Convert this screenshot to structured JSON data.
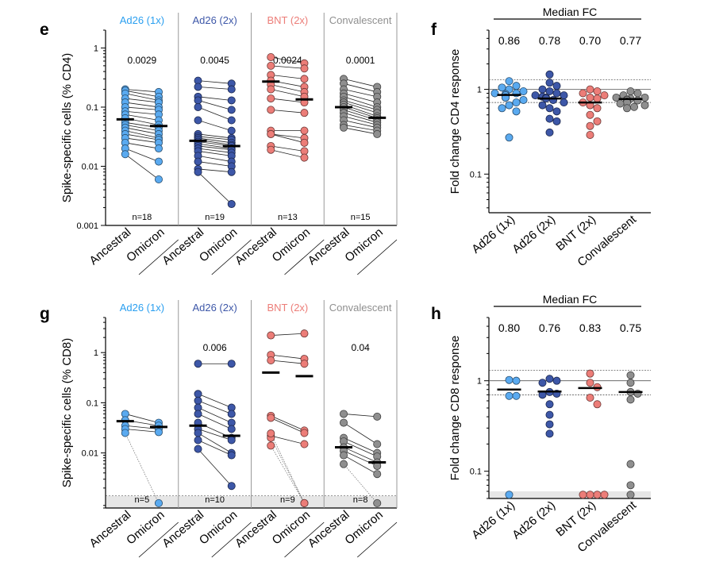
{
  "colors": {
    "Ad26 (1x)": "#5aaaf0",
    "Ad26 (2x)": "#3d57a8",
    "BNT (2x)": "#ec7d78",
    "Convalescent": "#8f8f8f",
    "group_text": [
      "#2a9ff0",
      "#3d57a8",
      "#ec7d78",
      "#8f8f8f"
    ]
  },
  "chart_data": [
    {
      "panel": "e",
      "type": "scatter",
      "ylabel": "Spike-specific cells (% CD4)",
      "yscale": "log",
      "ylim": [
        0.001,
        2
      ],
      "yticks": [
        0.001,
        0.01,
        0.1,
        1
      ],
      "ytick_labels": [
        "0.001",
        "0.01",
        "0.1",
        "1"
      ],
      "xlabels": [
        "Ancestral",
        "Omicron"
      ],
      "groups": [
        {
          "name": "Ad26 (1x)",
          "p": "0.0029",
          "n": "n=18",
          "median": [
            0.062,
            0.048
          ],
          "pairs": [
            [
              0.2,
              0.18
            ],
            [
              0.19,
              0.15
            ],
            [
              0.17,
              0.13
            ],
            [
              0.14,
              0.12
            ],
            [
              0.12,
              0.1
            ],
            [
              0.1,
              0.09
            ],
            [
              0.085,
              0.075
            ],
            [
              0.075,
              0.06
            ],
            [
              0.065,
              0.05
            ],
            [
              0.055,
              0.045
            ],
            [
              0.05,
              0.04
            ],
            [
              0.045,
              0.035
            ],
            [
              0.04,
              0.03
            ],
            [
              0.035,
              0.028
            ],
            [
              0.03,
              0.025
            ],
            [
              0.025,
              0.02
            ],
            [
              0.02,
              0.012
            ],
            [
              0.016,
              0.006
            ]
          ]
        },
        {
          "name": "Ad26 (2x)",
          "p": "0.0045",
          "n": "n=19",
          "median": [
            0.027,
            0.022
          ],
          "pairs": [
            [
              0.28,
              0.25
            ],
            [
              0.22,
              0.2
            ],
            [
              0.15,
              0.13
            ],
            [
              0.13,
              0.09
            ],
            [
              0.1,
              0.06
            ],
            [
              0.06,
              0.04
            ],
            [
              0.035,
              0.03
            ],
            [
              0.032,
              0.028
            ],
            [
              0.03,
              0.025
            ],
            [
              0.028,
              0.023
            ],
            [
              0.026,
              0.022
            ],
            [
              0.024,
              0.02
            ],
            [
              0.022,
              0.019
            ],
            [
              0.02,
              0.017
            ],
            [
              0.018,
              0.015
            ],
            [
              0.015,
              0.012
            ],
            [
              0.012,
              0.01
            ],
            [
              0.009,
              0.008
            ],
            [
              0.008,
              0.0023
            ]
          ]
        },
        {
          "name": "BNT (2x)",
          "p": "0.0024",
          "n": "n=13",
          "median": [
            0.27,
            0.135
          ],
          "pairs": [
            [
              0.7,
              0.55
            ],
            [
              0.5,
              0.45
            ],
            [
              0.35,
              0.3
            ],
            [
              0.28,
              0.22
            ],
            [
              0.24,
              0.18
            ],
            [
              0.2,
              0.15
            ],
            [
              0.14,
              0.12
            ],
            [
              0.09,
              0.08
            ],
            [
              0.04,
              0.04
            ],
            [
              0.035,
              0.03
            ],
            [
              0.035,
              0.025
            ],
            [
              0.022,
              0.018
            ],
            [
              0.019,
              0.014
            ]
          ]
        },
        {
          "name": "Convalescent",
          "p": "0.0001",
          "n": "n=15",
          "median": [
            0.1,
            0.066
          ],
          "pairs": [
            [
              0.3,
              0.22
            ],
            [
              0.25,
              0.18
            ],
            [
              0.2,
              0.15
            ],
            [
              0.17,
              0.12
            ],
            [
              0.15,
              0.1
            ],
            [
              0.13,
              0.09
            ],
            [
              0.12,
              0.08
            ],
            [
              0.11,
              0.07
            ],
            [
              0.1,
              0.065
            ],
            [
              0.09,
              0.06
            ],
            [
              0.08,
              0.055
            ],
            [
              0.07,
              0.05
            ],
            [
              0.06,
              0.045
            ],
            [
              0.05,
              0.04
            ],
            [
              0.045,
              0.035
            ]
          ]
        }
      ]
    },
    {
      "panel": "f",
      "type": "scatter",
      "ylabel": "Fold change CD4 response",
      "yscale": "log",
      "ylim": [
        0.035,
        5
      ],
      "yticks": [
        0.1,
        1
      ],
      "ytick_labels": [
        "0.1",
        "1"
      ],
      "median_fc_title": "Median FC",
      "reference_lines": [
        1.3,
        1,
        0.7
      ],
      "categories": [
        "Ad26 (1x)",
        "Ad26 (2x)",
        "BNT (2x)",
        "Convalescent"
      ],
      "medians": [
        0.86,
        0.78,
        0.7,
        0.77
      ],
      "median_labels": [
        "0.86",
        "0.78",
        "0.70",
        "0.77"
      ],
      "values": [
        [
          1.25,
          1.1,
          1.0,
          0.95,
          0.9,
          0.88,
          0.85,
          0.8,
          0.75,
          0.7,
          0.65,
          0.6,
          0.55,
          0.85,
          0.8,
          0.9,
          1.05,
          0.27
        ],
        [
          1.5,
          1.2,
          1.1,
          1.0,
          0.95,
          0.9,
          0.85,
          0.82,
          0.8,
          0.78,
          0.75,
          0.7,
          0.65,
          0.6,
          0.55,
          0.45,
          0.42,
          0.31,
          0.85
        ],
        [
          1.0,
          0.95,
          0.9,
          0.85,
          0.78,
          0.7,
          0.65,
          0.6,
          0.5,
          0.42,
          0.37,
          0.29,
          0.8
        ],
        [
          0.95,
          0.9,
          0.85,
          0.8,
          0.78,
          0.76,
          0.74,
          0.72,
          0.7,
          0.68,
          0.65,
          0.62,
          0.6,
          0.8,
          0.75
        ]
      ]
    },
    {
      "panel": "g",
      "type": "scatter",
      "ylabel": "Spike-specific cells (% CD8)",
      "yscale": "log",
      "ylim": [
        0.0008,
        5
      ],
      "yticks": [
        0.01,
        0.1,
        1
      ],
      "ytick_labels": [
        "0.01",
        "0.1",
        "1"
      ],
      "detection_limit": 0.0014,
      "xlabels": [
        "Ancestral",
        "Omicron"
      ],
      "groups": [
        {
          "name": "Ad26 (1x)",
          "p": "",
          "n": "n=5",
          "median": [
            0.043,
            0.033
          ],
          "pairs": [
            [
              0.06,
              0.04
            ],
            [
              0.045,
              0.035
            ],
            [
              0.035,
              0.03
            ],
            [
              0.03,
              0.026
            ],
            [
              0.025,
              0.001
            ]
          ]
        },
        {
          "name": "Ad26 (2x)",
          "p": "0.006",
          "n": "n=10",
          "median": [
            0.035,
            0.022
          ],
          "pairs": [
            [
              0.6,
              0.6
            ],
            [
              0.15,
              0.08
            ],
            [
              0.11,
              0.06
            ],
            [
              0.08,
              0.04
            ],
            [
              0.06,
              0.03
            ],
            [
              0.04,
              0.02
            ],
            [
              0.03,
              0.018
            ],
            [
              0.025,
              0.01
            ],
            [
              0.018,
              0.009
            ],
            [
              0.012,
              0.0022
            ]
          ]
        },
        {
          "name": "BNT (2x)",
          "p": "",
          "n": "n=9",
          "median": [
            0.4,
            0.34
          ],
          "pairs": [
            [
              2.2,
              2.4
            ],
            [
              0.9,
              0.75
            ],
            [
              0.7,
              0.6
            ],
            [
              0.055,
              0.028
            ],
            [
              0.05,
              0.025
            ],
            [
              0.022,
              0.015
            ],
            [
              0.02,
              0.001
            ],
            [
              0.014,
              0.001
            ],
            [
              0.0245,
              0.001
            ]
          ]
        },
        {
          "name": "Convalescent",
          "p": "0.04",
          "n": "n=8",
          "median": [
            0.013,
            0.0065
          ],
          "pairs": [
            [
              0.06,
              0.053
            ],
            [
              0.04,
              0.015
            ],
            [
              0.02,
              0.01
            ],
            [
              0.017,
              0.0085
            ],
            [
              0.013,
              0.0065
            ],
            [
              0.011,
              0.0055
            ],
            [
              0.009,
              0.0038
            ],
            [
              0.006,
              0.001
            ]
          ]
        }
      ]
    },
    {
      "panel": "h",
      "type": "scatter",
      "ylabel": "Fold change CD8 response",
      "yscale": "log",
      "ylim": [
        0.05,
        5
      ],
      "yticks": [
        0.1,
        1
      ],
      "ytick_labels": [
        "0.1",
        "1"
      ],
      "detection_limit": 0.06,
      "median_fc_title": "Median FC",
      "reference_lines": [
        1.3,
        1,
        0.7
      ],
      "categories": [
        "Ad26 (1x)",
        "Ad26 (2x)",
        "BNT (2x)",
        "Convalescent"
      ],
      "medians": [
        0.8,
        0.76,
        0.83,
        0.75
      ],
      "median_labels": [
        "0.80",
        "0.76",
        "0.83",
        "0.75"
      ],
      "values": [
        [
          1.02,
          1.0,
          0.68,
          0.68,
          0.055
        ],
        [
          1.05,
          1.0,
          0.95,
          0.75,
          0.72,
          0.7,
          0.55,
          0.42,
          0.33,
          0.26
        ],
        [
          1.2,
          0.95,
          0.85,
          0.65,
          0.55,
          0.055,
          0.055,
          0.055,
          0.055
        ],
        [
          1.15,
          0.95,
          0.75,
          0.72,
          0.62,
          0.12,
          0.07,
          0.055
        ]
      ]
    }
  ]
}
